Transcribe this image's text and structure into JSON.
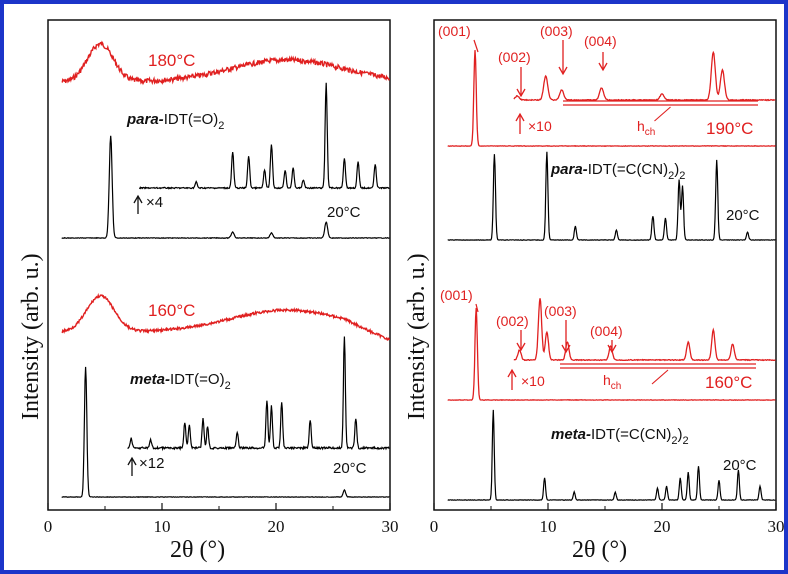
{
  "chart_data": [
    {
      "type": "line",
      "panel": "left",
      "xlabel": "2θ  (°)",
      "ylabel": "Intensity  (arb. u.)",
      "xlim": [
        0,
        30
      ],
      "xticks": [
        "0",
        "10",
        "20",
        "30"
      ],
      "series": [
        {
          "name": "para-IDT(=O)2 180°C",
          "color": "#e02020",
          "temp_label": "180°C",
          "peaks_2theta": [
            4.5
          ]
        },
        {
          "name": "para-IDT(=O)2 20°C",
          "color": "#000000",
          "temp_label": "20°C",
          "magnify": "×4",
          "magnify_from": 8,
          "peaks_2theta": [
            5.5,
            13.0,
            16.2,
            17.6,
            19.0,
            19.6,
            20.8,
            21.5,
            22.4,
            24.4,
            26.0,
            27.2,
            28.7
          ]
        },
        {
          "name": "meta-IDT(=O)2 160°C",
          "color": "#e02020",
          "temp_label": "160°C",
          "peaks_2theta": [
            4.6
          ]
        },
        {
          "name": "meta-IDT(=O)2 20°C",
          "color": "#000000",
          "temp_label": "20°C",
          "magnify": "×12",
          "magnify_from": 7,
          "peaks_2theta": [
            3.3,
            7.3,
            9.0,
            12.0,
            12.4,
            13.6,
            14.0,
            16.6,
            19.2,
            19.6,
            20.5,
            23.0,
            26.0,
            27.0
          ]
        }
      ],
      "labels": {
        "para_prefix": "para-",
        "para_compound": "IDT(=O)",
        "meta_prefix": "meta-",
        "meta_compound": "IDT(=O)",
        "subscript": "2"
      }
    },
    {
      "type": "line",
      "panel": "right",
      "xlabel": "2θ  (°)",
      "xlim": [
        0,
        30
      ],
      "xticks": [
        "0",
        "10",
        "20",
        "30"
      ],
      "series": [
        {
          "name": "para-IDT(=C(CN)2)2 190°C",
          "color": "#e02020",
          "temp_label": "190°C",
          "magnify": "×10",
          "magnify_from": 7,
          "peaks_2theta": [
            3.6,
            7.3,
            9.8,
            11.2,
            14.7,
            24.5,
            25.3
          ]
        },
        {
          "name": "para-IDT(=C(CN)2)2 20°C",
          "color": "#000000",
          "temp_label": "20°C",
          "peaks_2theta": [
            5.3,
            9.9,
            12.4,
            16.0,
            19.2,
            20.3,
            21.5,
            21.8,
            24.8,
            27.5
          ]
        },
        {
          "name": "meta-IDT(=C(CN)2)2 160°C",
          "color": "#e02020",
          "temp_label": "160°C",
          "magnify": "×10",
          "magnify_from": 7,
          "peaks_2theta": [
            3.7,
            7.5,
            9.3,
            9.9,
            11.7,
            15.5,
            22.3,
            24.5,
            26.2
          ]
        },
        {
          "name": "meta-IDT(=C(CN)2)2 20°C",
          "color": "#000000",
          "temp_label": "20°C",
          "peaks_2theta": [
            5.2,
            9.7,
            12.3,
            15.9,
            19.6,
            20.4,
            21.6,
            22.3,
            23.2,
            25.0,
            26.7,
            28.6
          ]
        }
      ],
      "annotations": {
        "top": [
          "(001)",
          "(002)",
          "(003)",
          "(004)"
        ],
        "bottom": [
          "(001)",
          "(002)",
          "(003)",
          "(004)"
        ],
        "hch": "h",
        "hch_sub": "ch"
      },
      "labels": {
        "para_prefix": "para-",
        "para_compound": "IDT(=C(CN)",
        "meta_prefix": "meta-",
        "meta_compound": "IDT(=C(CN)",
        "subscript": "2",
        "close": ")"
      }
    }
  ]
}
